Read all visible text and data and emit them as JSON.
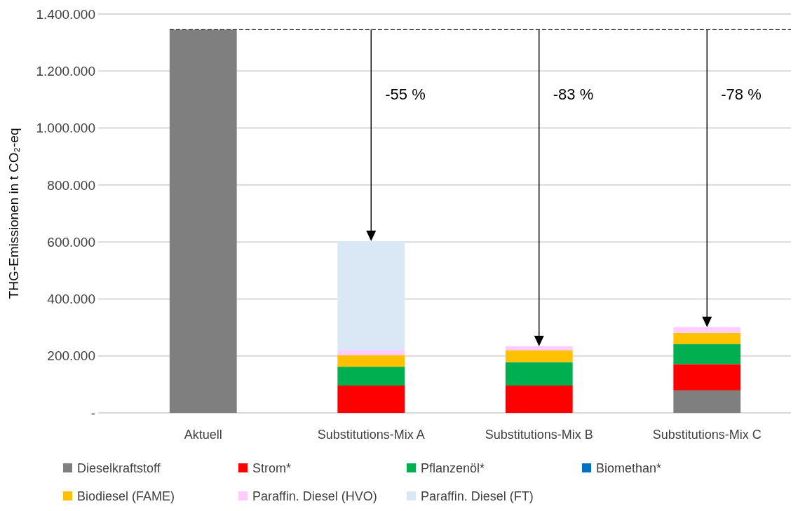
{
  "chart_data": {
    "type": "bar",
    "stacked": true,
    "ylabel": "THG-Emissionen in t CO₂-eq",
    "categories": [
      "Aktuell",
      "Substitutions-Mix A",
      "Substitutions-Mix B",
      "Substitutions-Mix C"
    ],
    "series": [
      {
        "name": "Dieselkraftstoff",
        "color": "#7f7f7f",
        "values": [
          1345000,
          0,
          0,
          79000
        ]
      },
      {
        "name": "Strom*",
        "color": "#ff0000",
        "values": [
          0,
          96000,
          96000,
          92000
        ]
      },
      {
        "name": "Pflanzenöl*",
        "color": "#00b050",
        "values": [
          0,
          66000,
          82000,
          70000
        ]
      },
      {
        "name": "Biomethan*",
        "color": "#0070c0",
        "values": [
          0,
          0,
          0,
          0
        ]
      },
      {
        "name": "Biodiesel (FAME)",
        "color": "#ffc000",
        "values": [
          0,
          41000,
          41000,
          40000
        ]
      },
      {
        "name": "Paraffin. Diesel (HVO)",
        "color": "#ffccff",
        "values": [
          0,
          18000,
          15000,
          20000
        ]
      },
      {
        "name": "Paraffin. Diesel (FT)",
        "color": "#dae8f5",
        "values": [
          0,
          382000,
          0,
          0
        ]
      }
    ],
    "ylim": [
      0,
      1400000
    ],
    "yticks": [
      {
        "value": 0,
        "label": "-"
      },
      {
        "value": 200000,
        "label": "200.000"
      },
      {
        "value": 400000,
        "label": "400.000"
      },
      {
        "value": 600000,
        "label": "600.000"
      },
      {
        "value": 800000,
        "label": "800.000"
      },
      {
        "value": 1000000,
        "label": "1.000.000"
      },
      {
        "value": 1200000,
        "label": "1.200.000"
      },
      {
        "value": 1400000,
        "label": "1.400.000"
      }
    ],
    "grid": "y",
    "legend": "bottom",
    "ref_lines": [
      {
        "axis": "y",
        "value": 1345000,
        "color": "#000000",
        "line_style": "dashed"
      }
    ],
    "annotations": [
      "-55 %",
      "-83 %",
      "-78 %"
    ]
  }
}
